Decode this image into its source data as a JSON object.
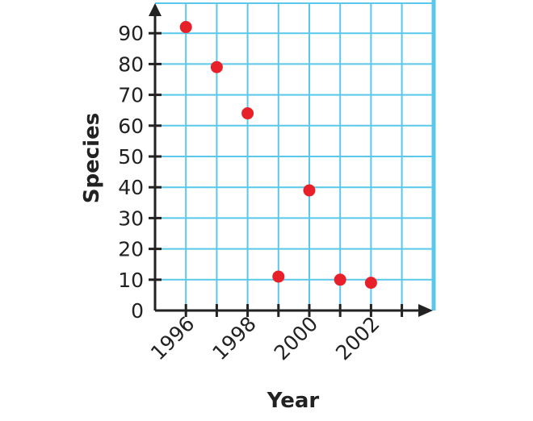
{
  "chart_data": {
    "type": "scatter",
    "title": "",
    "xlabel": "Year",
    "ylabel": "Species",
    "x": [
      1996,
      1997,
      1998,
      1999,
      2000,
      2001,
      2002
    ],
    "y": [
      92,
      79,
      64,
      11,
      39,
      10,
      9
    ],
    "xlim": [
      1995,
      2003.9
    ],
    "ylim": [
      0,
      100
    ],
    "x_tick_labels": [
      "1996",
      "1998",
      "2000",
      "2002"
    ],
    "y_tick_labels": [
      "0",
      "10",
      "20",
      "30",
      "40",
      "50",
      "60",
      "70",
      "80",
      "90"
    ],
    "grid": true,
    "colors": {
      "point": "#e8202a",
      "grid": "#5ac8ea",
      "axis": "#222222",
      "right_border": "#5ac8ea"
    }
  }
}
